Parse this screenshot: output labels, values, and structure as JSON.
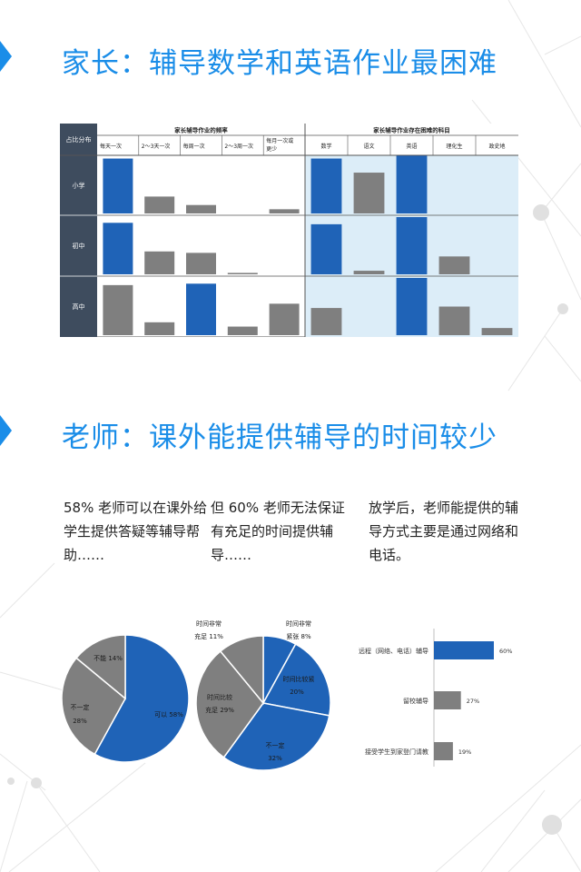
{
  "section1": {
    "title": "家长：辅导数学和英语作业最困难"
  },
  "section2": {
    "title": "老师：课外能提供辅导的时间较少"
  },
  "notes": [
    "58% 老师可以在课外给学生提供答疑等辅导帮助……",
    "但 60% 老师无法保证有充足的时间提供辅导……",
    "放学后，老师能提供的辅导方式主要是通过网络和电话。"
  ],
  "colors": {
    "blue": "#1f63b7",
    "gray": "#7f7f7f",
    "accent": "#1a8de8",
    "panel_bg": "#dcedf8",
    "header_dark": "#3e4c5e"
  },
  "chart_data": [
    {
      "type": "bar",
      "corner_label": "占比分布",
      "rows": [
        "小学",
        "初中",
        "高中"
      ],
      "panels": [
        {
          "title": "家长辅导作业的频率",
          "categories": [
            "每天一次",
            "2～3天一次",
            "每周一次",
            "2～3周一次",
            "每月一次或更少"
          ],
          "values": [
            [
              78,
              24,
              12,
              0,
              6
            ],
            [
              72,
              32,
              30,
              2,
              0
            ],
            [
              70,
              18,
              72,
              12,
              44
            ]
          ],
          "highlight": [
            [
              0
            ],
            [
              0
            ],
            [
              2
            ]
          ],
          "ylim": [
            0,
            80
          ]
        },
        {
          "title": "家长辅导作业存在困难的科目",
          "categories": [
            "数学",
            "语文",
            "英语",
            "理化生",
            "政史地"
          ],
          "values": [
            [
              78,
              58,
              82,
              0,
              0
            ],
            [
              70,
              5,
              80,
              25,
              0
            ],
            [
              38,
              0,
              80,
              40,
              10
            ]
          ],
          "highlight": [
            [
              0,
              2
            ],
            [
              0,
              2
            ],
            [
              2
            ]
          ],
          "ylim": [
            0,
            80
          ]
        }
      ]
    },
    {
      "type": "pie",
      "slices": [
        {
          "label": "可以",
          "value": 58,
          "pct_text": "58%",
          "color": "#1f63b7"
        },
        {
          "label": "不一定",
          "value": 28,
          "pct_text": "28%",
          "color": "#7f7f7f"
        },
        {
          "label": "不能",
          "value": 14,
          "pct_text": "14%",
          "color": "#7f7f7f"
        }
      ]
    },
    {
      "type": "pie",
      "slices": [
        {
          "label": "时间非常紧张",
          "value": 8,
          "pct_text": "8%",
          "color": "#1f63b7"
        },
        {
          "label": "时间比较紧",
          "value": 20,
          "pct_text": "20%",
          "color": "#1f63b7"
        },
        {
          "label": "不一定",
          "value": 32,
          "pct_text": "32%",
          "color": "#1f63b7"
        },
        {
          "label": "时间比较充足",
          "value": 29,
          "pct_text": "29%",
          "color": "#7f7f7f"
        },
        {
          "label": "时间非常充足",
          "value": 11,
          "pct_text": "11%",
          "color": "#7f7f7f"
        }
      ]
    },
    {
      "type": "bar",
      "orientation": "horizontal",
      "categories": [
        "远程（网络、电话）辅导",
        "留校辅导",
        "接受学生到家登门请教"
      ],
      "values": [
        60,
        27,
        19
      ],
      "value_labels": [
        "60%",
        "27%",
        "19%"
      ],
      "colors": [
        "#1f63b7",
        "#7f7f7f",
        "#7f7f7f"
      ],
      "xlim": [
        0,
        60
      ]
    }
  ]
}
